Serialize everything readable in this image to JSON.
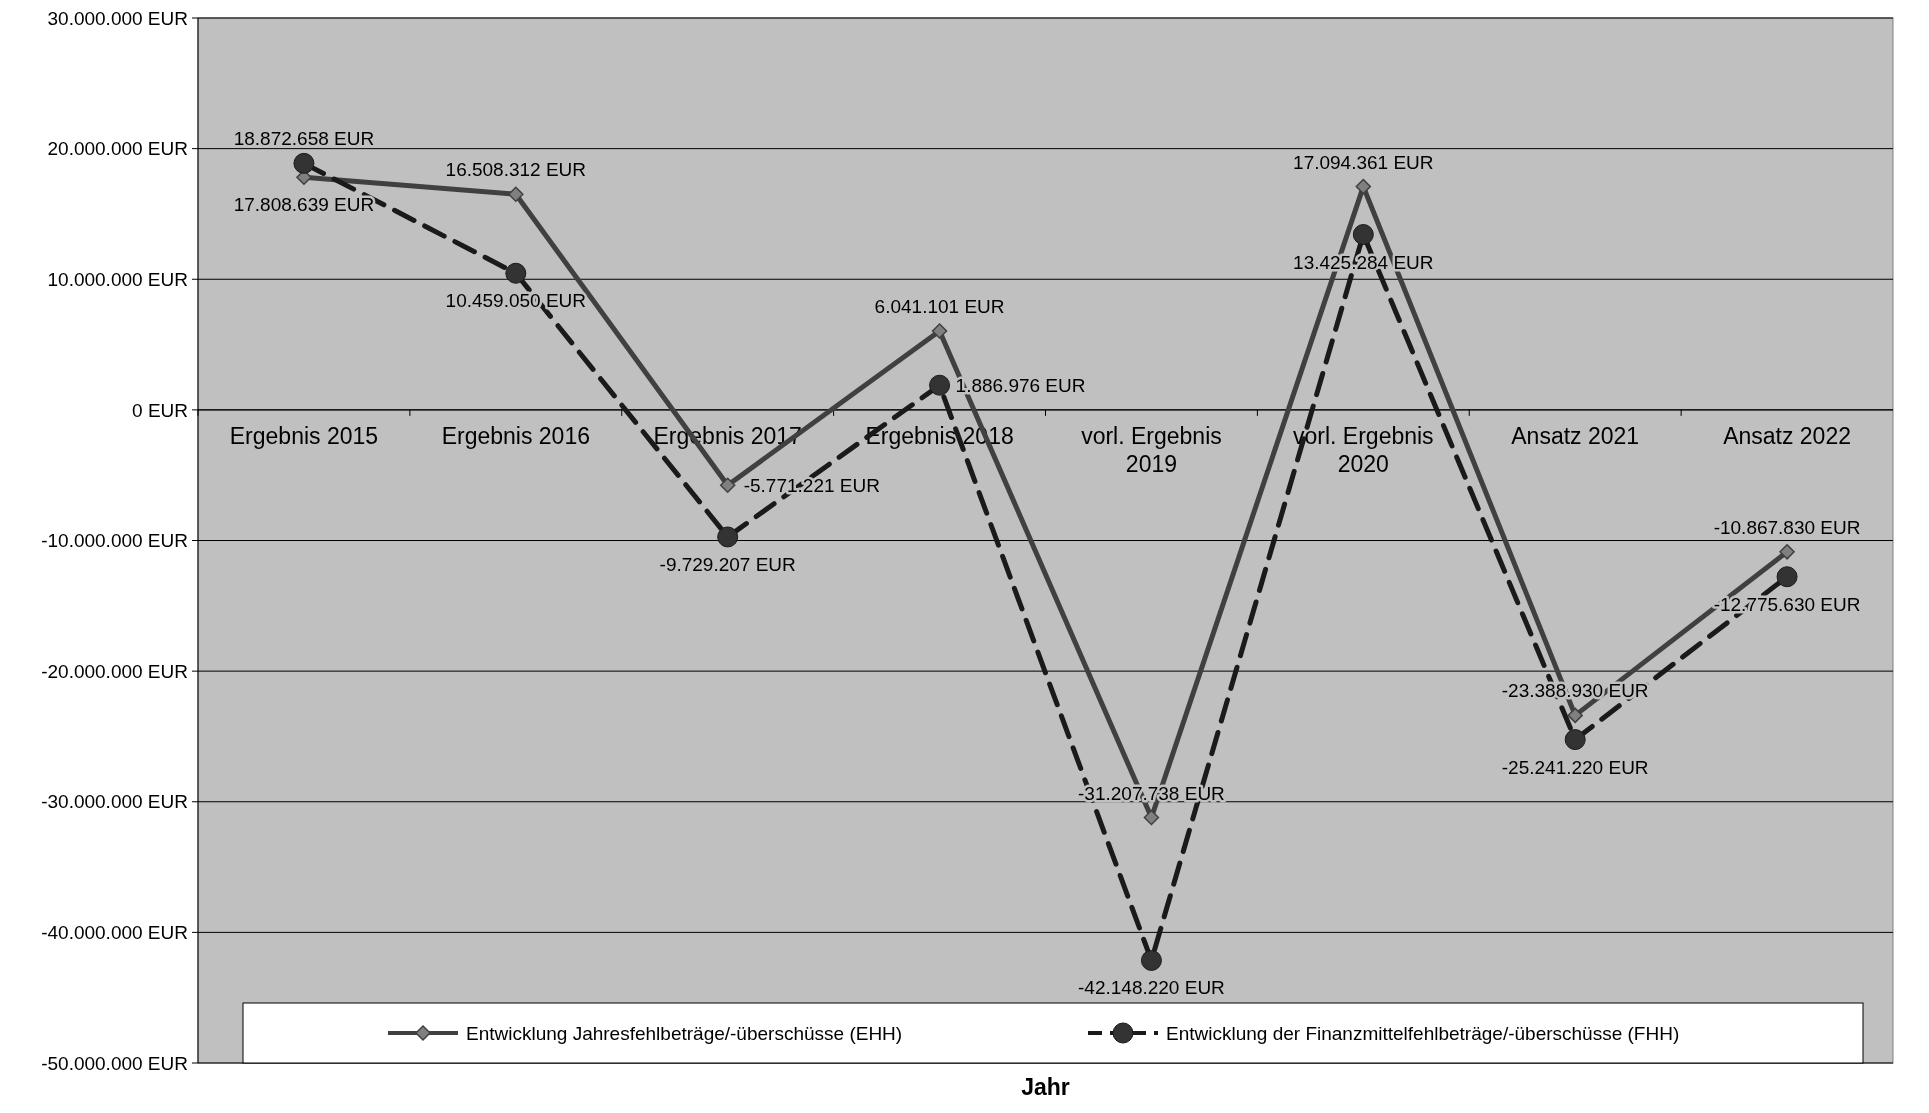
{
  "chart_data": {
    "type": "line",
    "xlabel": "Jahr",
    "categories": [
      "Ergebnis 2015",
      "Ergebnis 2016",
      "Ergebnis 2017",
      "Ergebnis 2018",
      "vorl. Ergebnis 2019",
      "vorl. Ergebnis 2020",
      "Ansatz 2021",
      "Ansatz 2022"
    ],
    "series": [
      {
        "name": "Entwicklung Jahresfehlbeträge/-überschüsse (EHH)",
        "color": "#404040",
        "marker": "diamond",
        "line_style": "solid",
        "values": [
          17808639,
          16508312,
          -5771221,
          6041101,
          -31207738,
          17094361,
          -23388930,
          -10867830
        ],
        "value_labels": [
          "17.808.639 EUR",
          "16.508.312 EUR",
          "-5.771.221 EUR",
          "6.041.101 EUR",
          "-31.207.738 EUR",
          "17.094.361 EUR",
          "-23.388.930 EUR",
          "-10.867.830 EUR"
        ]
      },
      {
        "name": "Entwicklung der Finanzmittelfehlbeträge/-überschüsse (FHH)",
        "color": "#1a1a1a",
        "marker": "circle",
        "line_style": "dashed",
        "values": [
          18872658,
          10459050,
          -9729207,
          1886976,
          -42148220,
          13425284,
          -25241220,
          -12775630
        ],
        "value_labels": [
          "18.872.658 EUR",
          "10.459.050 EUR",
          "-9.729.207 EUR",
          "1.886.976 EUR",
          "-42.148.220 EUR",
          "13.425.284 EUR",
          "-25.241.220 EUR",
          "-12.775.630 EUR"
        ]
      }
    ],
    "ylim": [
      -50000000,
      30000000
    ],
    "yticks": [
      {
        "value": -50000000,
        "label": "-50.000.000 EUR"
      },
      {
        "value": -40000000,
        "label": "-40.000.000 EUR"
      },
      {
        "value": -30000000,
        "label": "-30.000.000 EUR"
      },
      {
        "value": -20000000,
        "label": "-20.000.000 EUR"
      },
      {
        "value": -10000000,
        "label": "-10.000.000 EUR"
      },
      {
        "value": 0,
        "label": "0 EUR"
      },
      {
        "value": 10000000,
        "label": "10.000.000 EUR"
      },
      {
        "value": 20000000,
        "label": "20.000.000 EUR"
      },
      {
        "value": 30000000,
        "label": "30.000.000 EUR"
      }
    ],
    "grid": "y",
    "legend": "bottom"
  }
}
